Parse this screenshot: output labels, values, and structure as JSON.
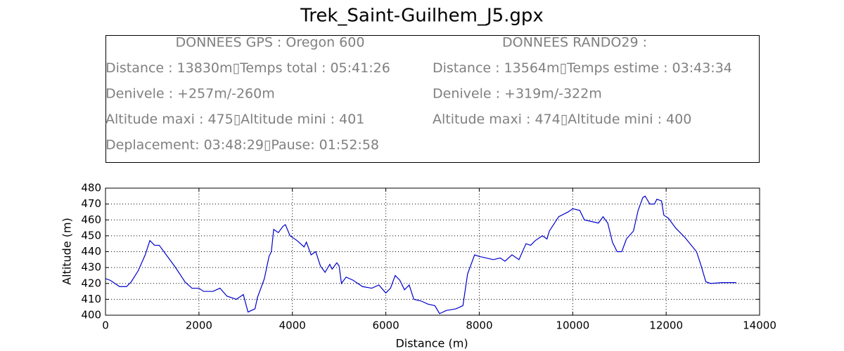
{
  "chart_data": {
    "type": "line",
    "title": "Trek_Saint-Guilhem_J5.gpx",
    "info_box": {
      "left": [
        "DONNEES GPS :  Oregon 600",
        "Distance : 13830m▯Temps total : 05:41:26",
        "Denivele : +257m/-260m",
        "Altitude maxi : 475▯Altitude mini : 401",
        "Deplacement: 03:48:29▯Pause: 01:52:58"
      ],
      "right": [
        "DONNEES RANDO29  :",
        "Distance : 13564m▯Temps estime : 03:43:34",
        "Denivele : +319m/-322m",
        "Altitude maxi : 474▯Altitude mini : 400"
      ]
    },
    "xlabel": "Distance (m)",
    "ylabel": "Altitude (m)",
    "xlim": [
      0,
      14000
    ],
    "ylim": [
      400,
      480
    ],
    "xticks": [
      0,
      2000,
      4000,
      6000,
      8000,
      10000,
      12000,
      14000
    ],
    "yticks": [
      400,
      410,
      420,
      430,
      440,
      450,
      460,
      470,
      480
    ],
    "grid": true,
    "color": "#0000cc",
    "x": [
      0,
      100,
      200,
      300,
      450,
      550,
      700,
      850,
      950,
      1050,
      1150,
      1300,
      1500,
      1700,
      1850,
      2000,
      2100,
      2300,
      2450,
      2600,
      2800,
      2950,
      3050,
      3200,
      3250,
      3400,
      3500,
      3550,
      3600,
      3700,
      3800,
      3850,
      3950,
      4100,
      4250,
      4300,
      4400,
      4500,
      4600,
      4700,
      4800,
      4850,
      4950,
      5000,
      5050,
      5150,
      5300,
      5500,
      5700,
      5850,
      6000,
      6100,
      6200,
      6300,
      6400,
      6500,
      6600,
      6750,
      6900,
      7050,
      7150,
      7300,
      7500,
      7650,
      7750,
      7900,
      8000,
      8150,
      8300,
      8450,
      8550,
      8700,
      8850,
      9000,
      9100,
      9200,
      9350,
      9450,
      9500,
      9700,
      9900,
      10000,
      10150,
      10250,
      10400,
      10550,
      10650,
      10750,
      10850,
      10950,
      11050,
      11150,
      11300,
      11400,
      11500,
      11550,
      11650,
      11750,
      11800,
      11900,
      11950,
      12050,
      12200,
      12400,
      12650,
      12750,
      12850,
      12950,
      13200,
      13500
    ],
    "values": [
      423,
      422,
      420,
      418,
      418,
      421,
      428,
      438,
      447,
      444,
      444,
      438,
      430,
      421,
      417,
      417,
      415,
      415,
      417,
      412,
      410,
      413,
      402,
      404,
      411,
      423,
      437,
      440,
      454,
      452,
      456,
      457,
      450,
      447,
      443,
      446,
      438,
      440,
      431,
      427,
      432,
      429,
      433,
      431,
      420,
      424,
      422,
      418,
      417,
      419,
      414,
      417,
      425,
      422,
      416,
      419,
      410,
      409,
      407,
      406,
      401,
      403,
      404,
      406,
      426,
      438,
      437,
      436,
      435,
      436,
      434,
      438,
      435,
      445,
      444,
      447,
      450,
      448,
      453,
      462,
      465,
      467,
      466,
      460,
      459,
      458,
      462,
      458,
      446,
      440,
      440,
      448,
      453,
      466,
      474,
      475,
      470,
      470,
      473,
      472,
      463,
      461,
      455,
      449,
      440,
      431,
      421,
      420,
      420.5,
      420.5
    ]
  }
}
